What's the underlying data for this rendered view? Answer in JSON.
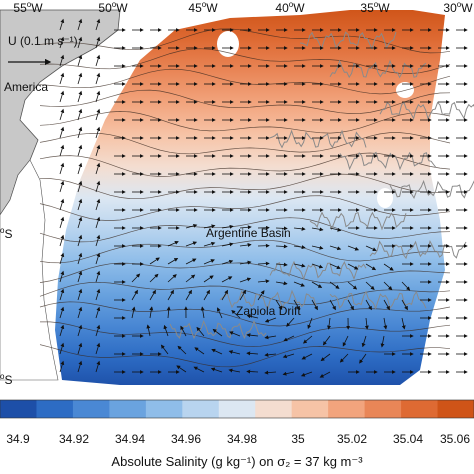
{
  "longitude_labels": [
    {
      "deg": "55",
      "hemi": "W"
    },
    {
      "deg": "50",
      "hemi": "W"
    },
    {
      "deg": "45",
      "hemi": "W"
    },
    {
      "deg": "40",
      "hemi": "W"
    },
    {
      "deg": "35",
      "hemi": "W"
    },
    {
      "deg": "30",
      "hemi": "W"
    }
  ],
  "latitude_labels": [
    {
      "deg": "",
      "hemi": "S"
    },
    {
      "deg": "",
      "hemi": "S"
    }
  ],
  "scale_arrow": {
    "label": "U (0.1 m s⁻¹)"
  },
  "place_labels": {
    "continent": "America",
    "basin": "Argentine Basin",
    "drift": "Zapiola Drift"
  },
  "colorbar": {
    "ticks": [
      "34.9",
      "34.92",
      "34.94",
      "34.96",
      "34.98",
      "35",
      "35.02",
      "35.04",
      "35.06"
    ],
    "title": "Absolute Salinity (g kg⁻¹) on σ₂ = 37 kg m⁻³",
    "colors": [
      "#1d4fa8",
      "#2d6cc4",
      "#4a88d4",
      "#6aa3df",
      "#8fbde9",
      "#b8d4ef",
      "#dce7f2",
      "#f4ddd0",
      "#f6c3a6",
      "#f2a47d",
      "#e98657",
      "#de6a33",
      "#cf5418"
    ]
  },
  "colors": {
    "land": "#c8c8c8",
    "coast_outline": "#555555",
    "bathymetry_contour": "#8a8a8a"
  }
}
